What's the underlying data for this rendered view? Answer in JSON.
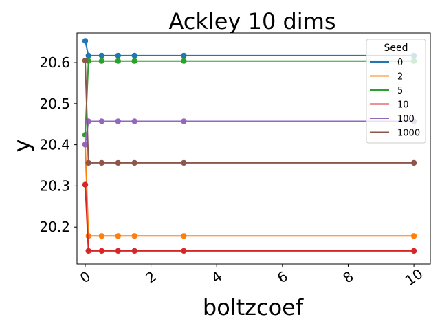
{
  "chart_data": {
    "type": "line",
    "title": "Ackley 10 dims",
    "xlabel": "boltzcoef",
    "ylabel": "y",
    "x": [
      0,
      0.1,
      0.5,
      1,
      1.5,
      3,
      10
    ],
    "xlim": [
      -0.25,
      10.5
    ],
    "ylim": [
      20.11,
      20.672
    ],
    "xticks": [
      0,
      2,
      4,
      6,
      8,
      10
    ],
    "yticks": [
      20.2,
      20.3,
      20.4,
      20.5,
      20.6
    ],
    "ytick_labels": [
      "20.2",
      "20.3",
      "20.4",
      "20.5",
      "20.6"
    ],
    "grid": false,
    "legend": {
      "title": "Seed",
      "placement": "top-right"
    },
    "series": [
      {
        "name": "0",
        "color": "#1f77b4",
        "values": [
          20.653,
          20.617,
          20.617,
          20.617,
          20.617,
          20.617,
          20.617
        ]
      },
      {
        "name": "2",
        "color": "#ff7f0e",
        "values": [
          20.4,
          20.178,
          20.178,
          20.178,
          20.178,
          20.178,
          20.178
        ]
      },
      {
        "name": "5",
        "color": "#2ca02c",
        "values": [
          20.424,
          20.604,
          20.604,
          20.604,
          20.604,
          20.604,
          20.604
        ]
      },
      {
        "name": "10",
        "color": "#d62728",
        "values": [
          20.303,
          20.142,
          20.142,
          20.142,
          20.142,
          20.142,
          20.142
        ]
      },
      {
        "name": "100",
        "color": "#9467bd",
        "values": [
          20.401,
          20.457,
          20.457,
          20.457,
          20.457,
          20.457,
          20.457
        ]
      },
      {
        "name": "1000",
        "color": "#8c564b",
        "values": [
          20.605,
          20.356,
          20.356,
          20.356,
          20.356,
          20.356,
          20.356
        ]
      }
    ]
  }
}
